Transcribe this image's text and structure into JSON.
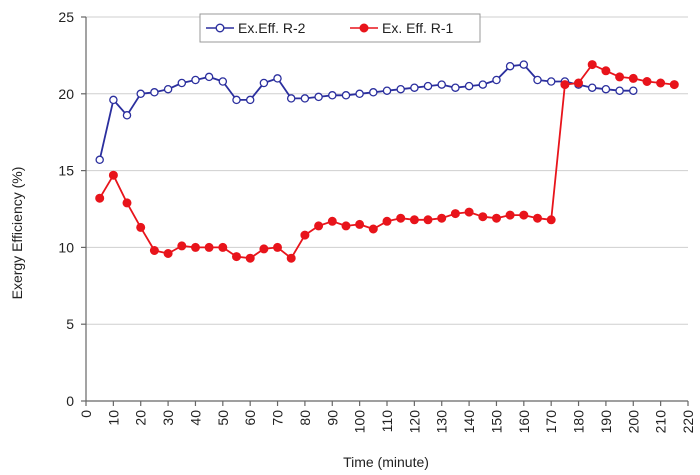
{
  "chart_data": {
    "type": "line",
    "title": "",
    "xlabel": "Time (minute)",
    "ylabel": "Exergy Efficiency (%)",
    "xlim": [
      0,
      220
    ],
    "ylim": [
      0,
      25
    ],
    "xticks": [
      0,
      10,
      20,
      30,
      40,
      50,
      60,
      70,
      80,
      90,
      100,
      110,
      120,
      130,
      140,
      150,
      160,
      170,
      180,
      190,
      200,
      210,
      220
    ],
    "yticks": [
      0,
      5,
      10,
      15,
      20,
      25
    ],
    "grid": "horizontal",
    "legend_position": "top-center",
    "series": [
      {
        "name": "Ex.Eff. R-2",
        "color": "#2b2f9e",
        "marker": "open-circle",
        "x": [
          5,
          10,
          15,
          20,
          25,
          30,
          35,
          40,
          45,
          50,
          55,
          60,
          65,
          70,
          75,
          80,
          85,
          90,
          95,
          100,
          105,
          110,
          115,
          120,
          125,
          130,
          135,
          140,
          145,
          150,
          155,
          160,
          165,
          170,
          175,
          180,
          185,
          190,
          195,
          200
        ],
        "values": [
          15.7,
          19.6,
          18.6,
          20.0,
          20.1,
          20.3,
          20.7,
          20.9,
          21.1,
          20.8,
          19.6,
          19.6,
          20.7,
          21.0,
          19.7,
          19.7,
          19.8,
          19.9,
          19.9,
          20.0,
          20.1,
          20.2,
          20.3,
          20.4,
          20.5,
          20.6,
          20.4,
          20.5,
          20.6,
          20.9,
          21.8,
          21.9,
          20.9,
          20.8,
          20.8,
          20.6,
          20.4,
          20.3,
          20.2,
          20.2
        ]
      },
      {
        "name": "Ex. Eff. R-1",
        "color": "#e8141b",
        "marker": "filled-circle",
        "x": [
          5,
          10,
          15,
          20,
          25,
          30,
          35,
          40,
          45,
          50,
          55,
          60,
          65,
          70,
          75,
          80,
          85,
          90,
          95,
          100,
          105,
          110,
          115,
          120,
          125,
          130,
          135,
          140,
          145,
          150,
          155,
          160,
          165,
          170,
          175,
          180,
          185,
          190,
          195,
          200,
          205,
          210,
          215
        ],
        "values": [
          13.2,
          14.7,
          12.9,
          11.3,
          9.8,
          9.6,
          10.1,
          10.0,
          10.0,
          10.0,
          9.4,
          9.3,
          9.9,
          10.0,
          9.3,
          10.8,
          11.4,
          11.7,
          11.4,
          11.5,
          11.2,
          11.7,
          11.9,
          11.8,
          11.8,
          11.9,
          12.2,
          12.3,
          12.0,
          11.9,
          12.1,
          12.1,
          11.9,
          11.8,
          20.6,
          20.7,
          21.9,
          21.5,
          21.1,
          21.0,
          20.8,
          20.7,
          20.6
        ]
      }
    ]
  }
}
